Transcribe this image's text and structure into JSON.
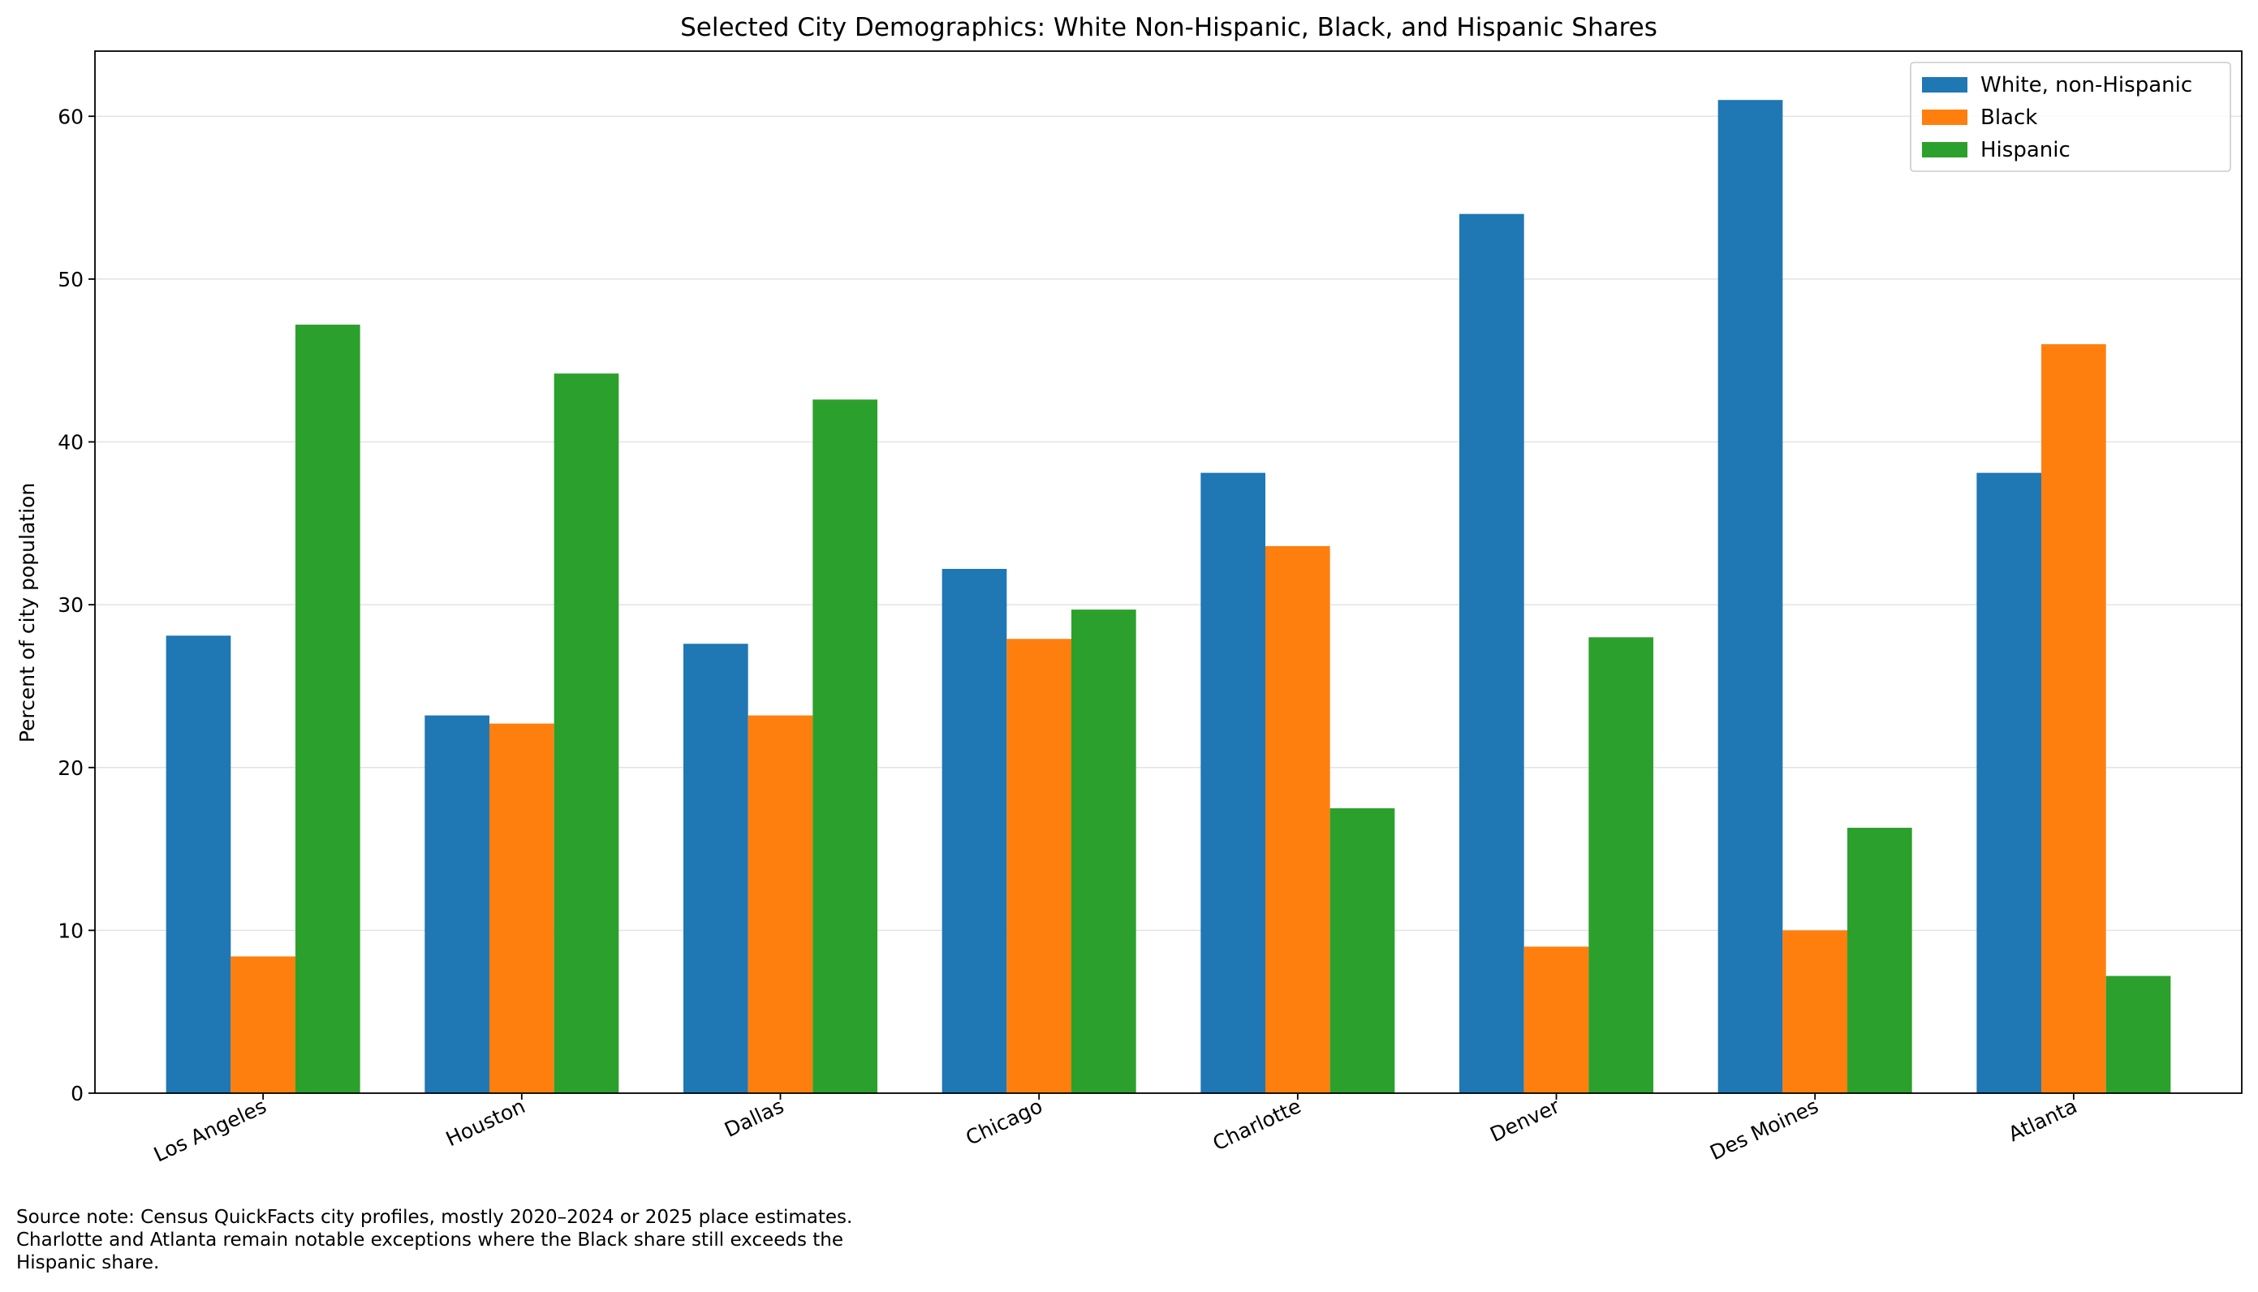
{
  "chart_data": {
    "type": "bar",
    "title": "Selected City Demographics: White Non-Hispanic, Black, and Hispanic Shares",
    "xlabel": "",
    "ylabel": "Percent of city population",
    "ylim": [
      0,
      64
    ],
    "yticks": [
      0,
      10,
      20,
      30,
      40,
      50,
      60
    ],
    "grid": true,
    "legend_position": "top-right",
    "categories": [
      "Los Angeles",
      "Houston",
      "Dallas",
      "Chicago",
      "Charlotte",
      "Denver",
      "Des Moines",
      "Atlanta"
    ],
    "series": [
      {
        "name": "White, non-Hispanic",
        "color": "#1f77b4",
        "values": [
          28.1,
          23.2,
          27.6,
          32.2,
          38.1,
          54.0,
          61.0,
          38.1
        ]
      },
      {
        "name": "Black",
        "color": "#ff7f0e",
        "values": [
          8.4,
          22.7,
          23.2,
          27.9,
          33.6,
          9.0,
          10.0,
          46.0
        ]
      },
      {
        "name": "Hispanic",
        "color": "#2ca02c",
        "values": [
          47.2,
          44.2,
          42.6,
          29.7,
          17.5,
          28.0,
          16.3,
          7.2
        ]
      }
    ]
  },
  "source_note": {
    "line1": "Source note: Census QuickFacts city profiles, mostly 2020–2024 or 2025 place estimates.",
    "line2": "Charlotte and Atlanta remain notable exceptions where the Black share still exceeds the",
    "line3": "Hispanic share."
  }
}
